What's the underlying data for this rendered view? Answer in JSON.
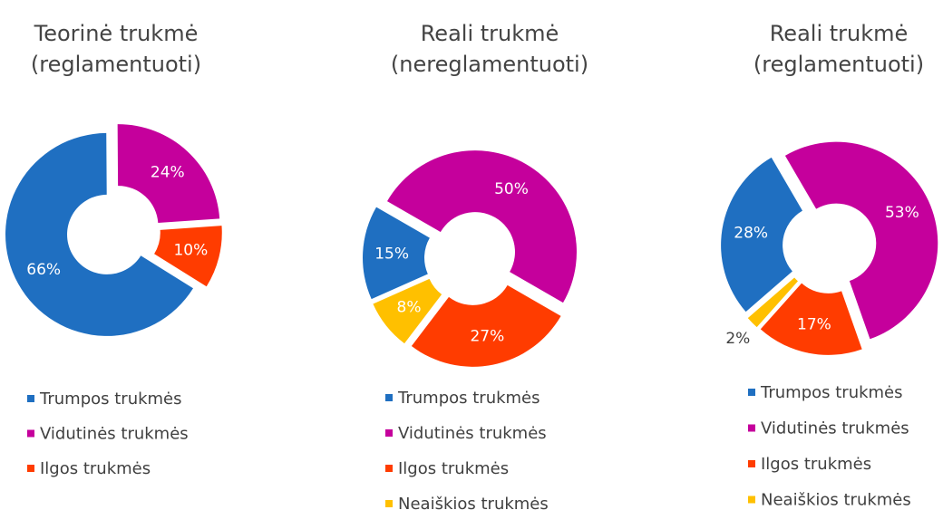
{
  "chart_data": [
    {
      "type": "donut",
      "title": [
        "Teorinė trukmė",
        "(reglamentuoti)"
      ],
      "categories": [
        "Trumpos trukmės",
        "Vidutinės trukmės",
        "Ilgos trukmės"
      ],
      "values": [
        66,
        24,
        10
      ],
      "value_labels": [
        "66%",
        "24%",
        "10%"
      ],
      "colors": [
        "#1f6fc1",
        "#c5009c",
        "#ff3c00"
      ],
      "legend": "bottom"
    },
    {
      "type": "donut",
      "title": [
        "Reali trukmė",
        "(nereglamentuoti)"
      ],
      "categories": [
        "Trumpos trukmės",
        "Vidutinės trukmės",
        "Ilgos trukmės",
        "Neaiškios trukmės"
      ],
      "values": [
        15,
        50,
        27,
        8
      ],
      "value_labels": [
        "15%",
        "50%",
        "27%",
        "8%"
      ],
      "colors": [
        "#1f6fc1",
        "#c5009c",
        "#ff3c00",
        "#ffc000"
      ],
      "legend": "bottom"
    },
    {
      "type": "donut",
      "title": [
        "Reali trukmė",
        "(reglamentuoti)"
      ],
      "categories": [
        "Trumpos trukmės",
        "Vidutinės trukmės",
        "Ilgos trukmės",
        "Neaiškios trukmės"
      ],
      "values": [
        28,
        53,
        17,
        2
      ],
      "value_labels": [
        "28%",
        "53%",
        "17%",
        "2%"
      ],
      "colors": [
        "#1f6fc1",
        "#c5009c",
        "#ff3c00",
        "#ffc000"
      ],
      "legend": "bottom"
    }
  ]
}
